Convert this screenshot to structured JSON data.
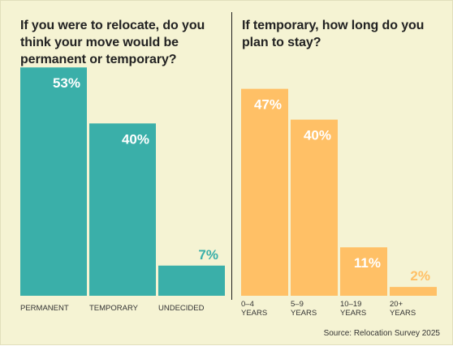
{
  "chart_data": [
    {
      "type": "bar",
      "title": "If you were to relocate, do you think your move would be permanent or temporary?",
      "categories": [
        "PERMANENT",
        "TEMPORARY",
        "UNDECIDED"
      ],
      "values": [
        53,
        40,
        7
      ],
      "value_labels": [
        "53%",
        "40%",
        "7%"
      ],
      "unit": "%",
      "ylim": [
        0,
        60
      ],
      "grid": false,
      "color": "#3aafa9",
      "label_color": "#ffffff",
      "outside_label_color": "#3aafa9"
    },
    {
      "type": "bar",
      "title": "If temporary, how long do you plan to stay?",
      "categories": [
        [
          "0–4",
          "YEARS"
        ],
        [
          "5–9",
          "YEARS"
        ],
        [
          "10–19",
          "YEARS"
        ],
        [
          "20+",
          "YEARS"
        ]
      ],
      "values": [
        47,
        40,
        11,
        2
      ],
      "value_labels": [
        "47%",
        "40%",
        "11%",
        "2%"
      ],
      "unit": "%",
      "ylim": [
        0,
        53
      ],
      "grid": false,
      "color": "#ffc066",
      "label_color": "#ffffff",
      "outside_label_color": "#ffc066"
    }
  ],
  "source": "Source: Relocation Survey 2025",
  "colors": {
    "background": "#f5f3d3",
    "divider": "#1d1d1d",
    "title_text": "#222222",
    "axis_text": "#333333"
  }
}
